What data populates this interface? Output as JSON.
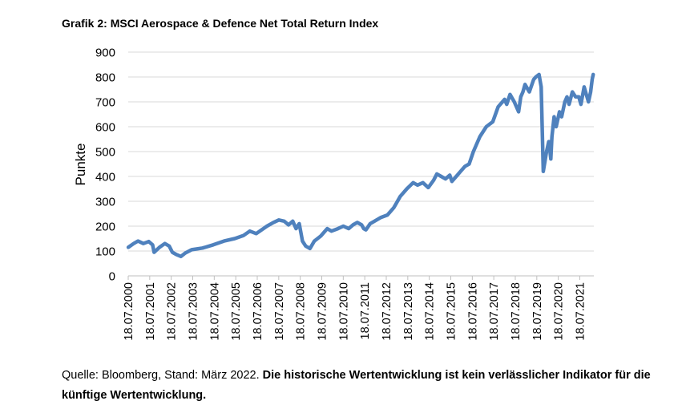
{
  "title": "Grafik 2: MSCI Aerospace & Defence Net Total Return Index",
  "source": {
    "prefix": "Quelle: Bloomberg, Stand: März 2022. ",
    "disclaimer": "Die historische Wertentwicklung ist kein verlässlicher Indikator für die künftige Wertentwicklung."
  },
  "colors": {
    "line": "#4f81bd",
    "grid": "#d9d9d9",
    "axis": "#bfbfbf"
  },
  "chart_data": {
    "type": "line",
    "title": "Grafik 2: MSCI Aerospace & Defence Net Total Return Index",
    "ylabel": "Punkte",
    "xlabel": "",
    "ylim": [
      0,
      900
    ],
    "yticks": [
      0,
      100,
      200,
      300,
      400,
      500,
      600,
      700,
      800,
      900
    ],
    "xlim": [
      2000.547,
      2022.2
    ],
    "xticks": [
      {
        "x": 2000.547,
        "label": "18.07.2000"
      },
      {
        "x": 2001.547,
        "label": "18.07.2001"
      },
      {
        "x": 2002.547,
        "label": "18.07.2002"
      },
      {
        "x": 2003.547,
        "label": "18.07.2003"
      },
      {
        "x": 2004.547,
        "label": "18.07.2004"
      },
      {
        "x": 2005.547,
        "label": "18.07.2005"
      },
      {
        "x": 2006.547,
        "label": "18.07.2006"
      },
      {
        "x": 2007.547,
        "label": "18.07.2007"
      },
      {
        "x": 2008.547,
        "label": "18.07.2008"
      },
      {
        "x": 2009.547,
        "label": "18.07.2009"
      },
      {
        "x": 2010.547,
        "label": "18.07.2010"
      },
      {
        "x": 2011.547,
        "label": "18.07.2011"
      },
      {
        "x": 2012.547,
        "label": "18.07.2012"
      },
      {
        "x": 2013.547,
        "label": "18.07.2013"
      },
      {
        "x": 2014.547,
        "label": "18.07.2014"
      },
      {
        "x": 2015.547,
        "label": "18.07.2015"
      },
      {
        "x": 2016.547,
        "label": "18.07.2016"
      },
      {
        "x": 2017.547,
        "label": "18.07.2017"
      },
      {
        "x": 2018.547,
        "label": "18.07.2018"
      },
      {
        "x": 2019.547,
        "label": "18.07.2019"
      },
      {
        "x": 2020.547,
        "label": "18.07.2020"
      },
      {
        "x": 2021.547,
        "label": "18.07.2021"
      }
    ],
    "grid": true,
    "legend": "none",
    "series": [
      {
        "x": [
          2000.55,
          2000.8,
          2001.0,
          2001.25,
          2001.5,
          2001.68,
          2001.75,
          2002.0,
          2002.25,
          2002.45,
          2002.6,
          2002.8,
          2003.0,
          2003.2,
          2003.5,
          2004.0,
          2004.5,
          2005.0,
          2005.5,
          2005.9,
          2006.2,
          2006.5,
          2007.0,
          2007.3,
          2007.55,
          2007.8,
          2008.0,
          2008.2,
          2008.35,
          2008.5,
          2008.65,
          2008.8,
          2009.0,
          2009.2,
          2009.5,
          2009.8,
          2010.0,
          2010.3,
          2010.55,
          2010.8,
          2011.0,
          2011.1,
          2011.2,
          2011.4,
          2011.5,
          2011.6,
          2011.8,
          2012.0,
          2012.3,
          2012.6,
          2012.9,
          2013.2,
          2013.5,
          2013.8,
          2014.0,
          2014.25,
          2014.5,
          2014.75,
          2014.9,
          2015.1,
          2015.3,
          2015.5,
          2015.6,
          2015.8,
          2016.0,
          2016.2,
          2016.4,
          2016.6,
          2016.9,
          2017.2,
          2017.5,
          2017.75,
          2017.95,
          2018.05,
          2018.15,
          2018.3,
          2018.5,
          2018.7,
          2018.8,
          2018.9,
          2019.0,
          2019.2,
          2019.4,
          2019.5,
          2019.65,
          2019.75,
          2019.85,
          2020.0,
          2020.1,
          2020.15,
          2020.2,
          2020.25,
          2020.35,
          2020.45,
          2020.6,
          2020.7,
          2020.85,
          2020.95,
          2021.05,
          2021.2,
          2021.35,
          2021.5,
          2021.6,
          2021.75,
          2021.85,
          2021.95,
          2022.05,
          2022.12,
          2022.17
        ],
        "y": [
          115,
          130,
          140,
          130,
          138,
          125,
          95,
          115,
          130,
          120,
          95,
          85,
          78,
          92,
          105,
          112,
          125,
          140,
          150,
          162,
          180,
          170,
          200,
          215,
          225,
          220,
          205,
          220,
          190,
          210,
          140,
          120,
          110,
          140,
          160,
          190,
          180,
          190,
          200,
          190,
          205,
          210,
          215,
          205,
          190,
          185,
          210,
          220,
          235,
          245,
          275,
          320,
          350,
          375,
          365,
          375,
          355,
          385,
          410,
          400,
          390,
          405,
          380,
          400,
          420,
          440,
          450,
          500,
          560,
          600,
          620,
          680,
          700,
          710,
          690,
          730,
          700,
          660,
          720,
          740,
          770,
          740,
          790,
          800,
          810,
          760,
          420,
          500,
          540,
          510,
          470,
          560,
          640,
          600,
          660,
          640,
          700,
          720,
          690,
          740,
          720,
          720,
          690,
          760,
          730,
          700,
          740,
          790,
          810
        ]
      }
    ]
  }
}
